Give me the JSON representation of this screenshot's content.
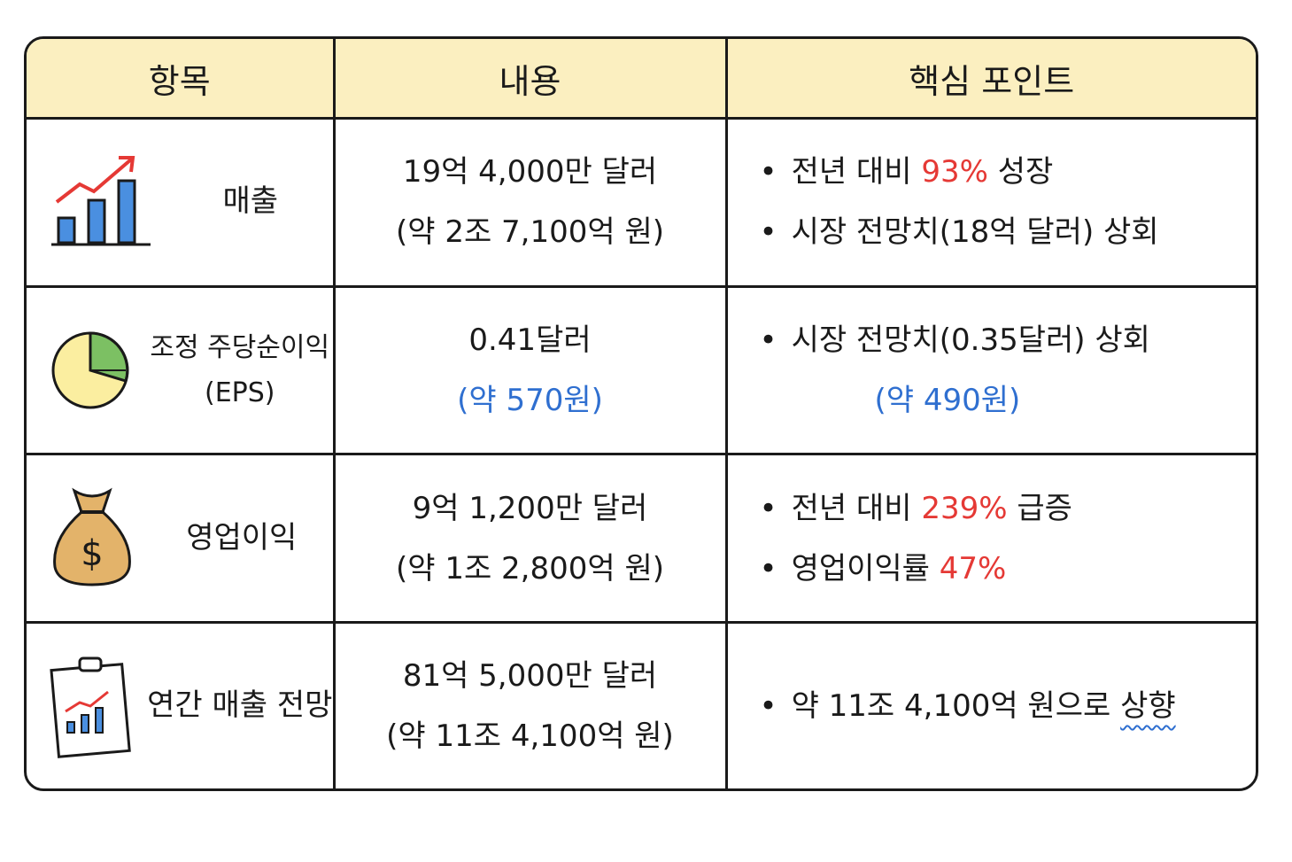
{
  "table": {
    "headers": [
      "항목",
      "내용",
      "핵심 포인트"
    ],
    "rows": [
      {
        "item": [
          "매출"
        ],
        "content": [
          {
            "text": "19억 4,000만 달러"
          },
          {
            "text": "(약 2조 7,100억 원)"
          }
        ],
        "points": [
          {
            "bullet": true,
            "segments": [
              {
                "text": "전년 대비 "
              },
              {
                "text": "93%",
                "color": "#e53935"
              },
              {
                "text": " 성장"
              }
            ]
          },
          {
            "bullet": true,
            "segments": [
              {
                "text": "시장 전망치(18억 달러) 상회"
              }
            ]
          }
        ]
      },
      {
        "item": [
          "조정 주당순이익",
          "(EPS)"
        ],
        "content": [
          {
            "text": "0.41달러"
          },
          {
            "text": "(약 570원)",
            "color": "#2f6fd0"
          }
        ],
        "points": [
          {
            "bullet": true,
            "segments": [
              {
                "text": "시장 전망치(0.35달러) 상회"
              }
            ]
          },
          {
            "bullet": false,
            "segments": [
              {
                "text": "(약 490원)",
                "color": "#2f6fd0"
              }
            ]
          }
        ]
      },
      {
        "item": [
          "영업이익"
        ],
        "content": [
          {
            "text": "9억 1,200만 달러"
          },
          {
            "text": "(약 1조 2,800억 원)"
          }
        ],
        "points": [
          {
            "bullet": true,
            "segments": [
              {
                "text": "전년 대비 "
              },
              {
                "text": "239%",
                "color": "#e53935"
              },
              {
                "text": " 급증"
              }
            ]
          },
          {
            "bullet": true,
            "segments": [
              {
                "text": "영업이익률 "
              },
              {
                "text": "47%",
                "color": "#e53935"
              }
            ]
          }
        ]
      },
      {
        "item": [
          "연간 매출 전망"
        ],
        "content": [
          {
            "text": "81억 5,000만 달러"
          },
          {
            "text": "(약 11조 4,100억 원)"
          }
        ],
        "points": [
          {
            "bullet": true,
            "segments": [
              {
                "text": "약 11조 4,100억 원으로 "
              },
              {
                "text": "상향",
                "underline": "#2f6fd0"
              }
            ]
          }
        ]
      }
    ]
  }
}
